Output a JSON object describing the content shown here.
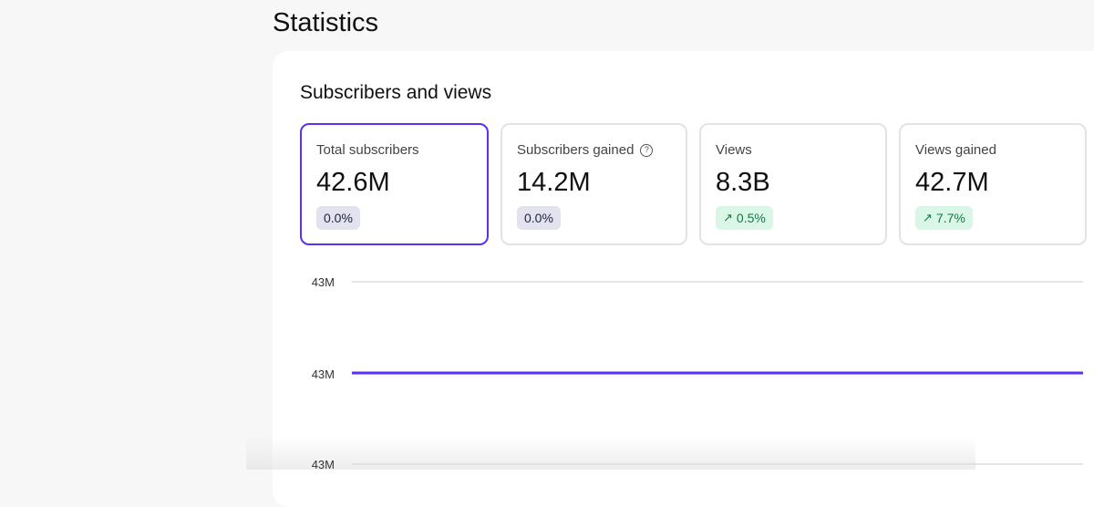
{
  "page": {
    "title": "Statistics"
  },
  "panel": {
    "title": "Subscribers and views"
  },
  "stats": [
    {
      "label": "Total subscribers",
      "value": "42.6M",
      "change": "0.0%",
      "trend": "neutral",
      "selected": true
    },
    {
      "label": "Subscribers gained",
      "value": "14.2M",
      "change": "0.0%",
      "trend": "neutral",
      "help_icon": "question-circle-icon"
    },
    {
      "label": "Views",
      "value": "8.3B",
      "change": "0.5%",
      "trend": "up",
      "trend_icon": "arrow-up-right-icon"
    },
    {
      "label": "Views gained",
      "value": "42.7M",
      "change": "7.7%",
      "trend": "up",
      "trend_icon": "arrow-up-right-icon"
    }
  ],
  "colors": {
    "accent": "#5b2ff5",
    "up_bg": "#d9f6e6",
    "up_text": "#137a43",
    "neutral_bg": "#e3e2ef"
  },
  "chart_data": {
    "type": "line",
    "y_tick_labels": [
      "43M",
      "43M",
      "43M"
    ],
    "ylim": [
      42.5,
      42.7
    ],
    "series": [
      {
        "values": [
          42.6,
          42.6
        ]
      }
    ],
    "grid": true
  }
}
